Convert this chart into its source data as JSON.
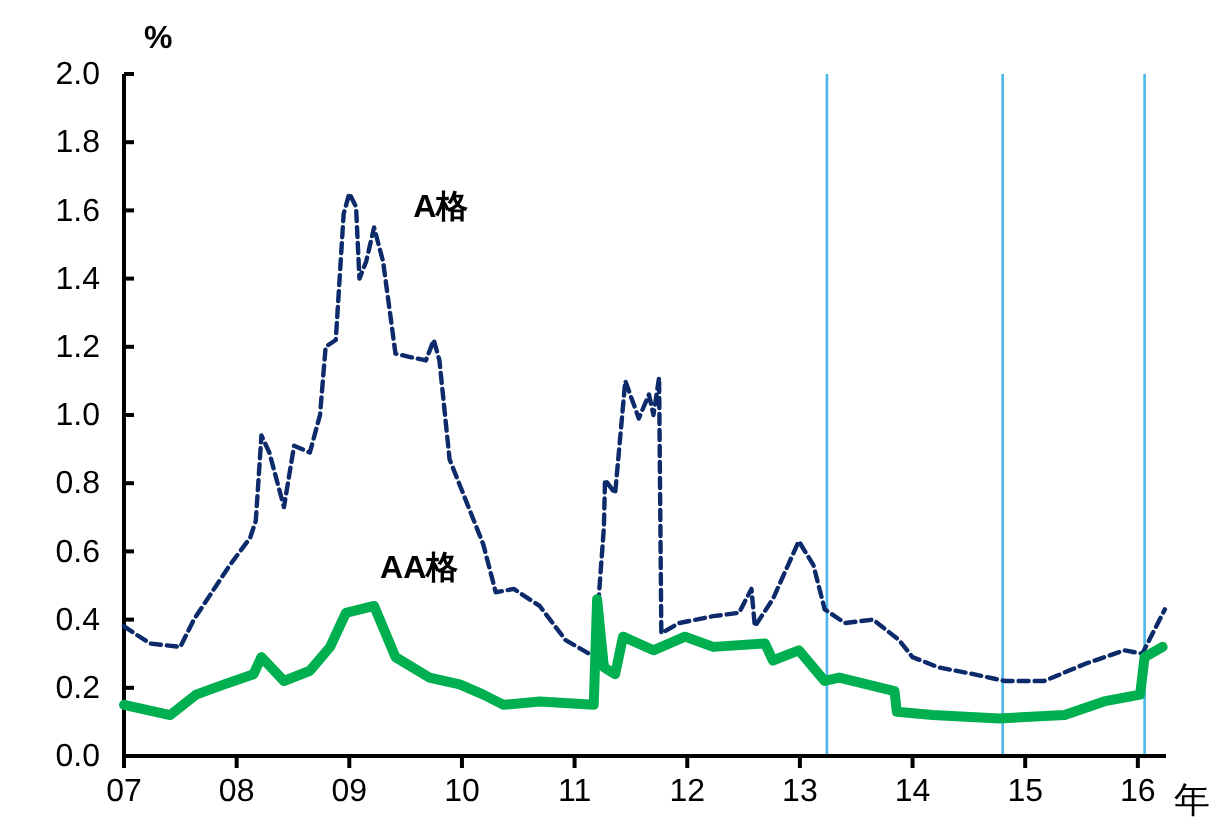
{
  "chart_data": {
    "type": "line",
    "xlabel": "年",
    "ylabel": "%",
    "xlim": [
      2007,
      2016.25
    ],
    "xticks": [
      {
        "value": 2007,
        "label": "07"
      },
      {
        "value": 2008,
        "label": "08"
      },
      {
        "value": 2009,
        "label": "09"
      },
      {
        "value": 2010,
        "label": "10"
      },
      {
        "value": 2011,
        "label": "11"
      },
      {
        "value": 2012,
        "label": "12"
      },
      {
        "value": 2013,
        "label": "13"
      },
      {
        "value": 2014,
        "label": "14"
      },
      {
        "value": 2015,
        "label": "15"
      },
      {
        "value": 2016,
        "label": "16"
      }
    ],
    "ylim": [
      0,
      2
    ],
    "yticks": [
      {
        "value": 0,
        "label": "0.0"
      },
      {
        "value": 0.2,
        "label": "0.2"
      },
      {
        "value": 0.4,
        "label": "0.4"
      },
      {
        "value": 0.6,
        "label": "0.6"
      },
      {
        "value": 0.8,
        "label": "0.8"
      },
      {
        "value": 1,
        "label": "1.0"
      },
      {
        "value": 1.2,
        "label": "1.2"
      },
      {
        "value": 1.4,
        "label": "1.4"
      },
      {
        "value": 1.6,
        "label": "1.6"
      },
      {
        "value": 1.8,
        "label": "1.8"
      },
      {
        "value": 2,
        "label": "2.0"
      }
    ],
    "grid": false,
    "legend": false,
    "marker": "none",
    "series": [
      {
        "name": "A格",
        "color": "#0d2a6b",
        "line_style": "dashed",
        "x": [
          2007.0,
          2007.23,
          2007.5,
          2007.62,
          2007.82,
          2007.94,
          2008.12,
          2008.17,
          2008.22,
          2008.29,
          2008.42,
          2008.51,
          2008.65,
          2008.74,
          2008.79,
          2008.88,
          2008.95,
          2009.0,
          2009.06,
          2009.09,
          2009.15,
          2009.22,
          2009.3,
          2009.41,
          2009.54,
          2009.68,
          2009.75,
          2009.8,
          2009.89,
          2010.01,
          2010.19,
          2010.3,
          2010.46,
          2010.69,
          2010.92,
          2011.13,
          2011.18,
          2011.26,
          2011.27,
          2011.36,
          2011.45,
          2011.57,
          2011.66,
          2011.7,
          2011.75,
          2011.77,
          2011.93,
          2012.23,
          2012.46,
          2012.57,
          2012.6,
          2012.76,
          2012.99,
          2013.12,
          2013.22,
          2013.4,
          2013.65,
          2013.88,
          2014.0,
          2014.23,
          2014.54,
          2014.82,
          2015.17,
          2015.53,
          2015.88,
          2016.04,
          2016.24
        ],
        "values": [
          0.38,
          0.33,
          0.32,
          0.4,
          0.5,
          0.56,
          0.64,
          0.69,
          0.94,
          0.89,
          0.73,
          0.91,
          0.89,
          1.0,
          1.2,
          1.22,
          1.59,
          1.65,
          1.61,
          1.4,
          1.45,
          1.55,
          1.45,
          1.18,
          1.17,
          1.16,
          1.22,
          1.16,
          0.87,
          0.77,
          0.62,
          0.48,
          0.49,
          0.44,
          0.34,
          0.3,
          0.31,
          0.67,
          0.81,
          0.77,
          1.1,
          0.99,
          1.06,
          1.0,
          1.11,
          0.36,
          0.39,
          0.41,
          0.42,
          0.49,
          0.38,
          0.46,
          0.63,
          0.56,
          0.43,
          0.39,
          0.4,
          0.34,
          0.29,
          0.26,
          0.24,
          0.22,
          0.22,
          0.27,
          0.31,
          0.3,
          0.43
        ]
      },
      {
        "name": "AA格",
        "color": "#00b050",
        "line_style": "solid",
        "x": [
          2007.0,
          2007.41,
          2007.64,
          2007.89,
          2008.15,
          2008.22,
          2008.42,
          2008.65,
          2008.83,
          2008.97,
          2009.22,
          2009.41,
          2009.71,
          2009.98,
          2010.19,
          2010.37,
          2010.69,
          2011.17,
          2011.2,
          2011.26,
          2011.36,
          2011.43,
          2011.7,
          2011.98,
          2012.23,
          2012.69,
          2012.76,
          2012.99,
          2013.22,
          2013.35,
          2013.84,
          2013.86,
          2014.18,
          2014.77,
          2015.35,
          2015.7,
          2016.02,
          2016.06,
          2016.22
        ],
        "values": [
          0.15,
          0.12,
          0.18,
          0.21,
          0.24,
          0.29,
          0.22,
          0.25,
          0.32,
          0.42,
          0.44,
          0.29,
          0.23,
          0.21,
          0.18,
          0.15,
          0.16,
          0.15,
          0.46,
          0.26,
          0.24,
          0.35,
          0.31,
          0.35,
          0.32,
          0.33,
          0.28,
          0.31,
          0.22,
          0.23,
          0.19,
          0.13,
          0.12,
          0.11,
          0.12,
          0.16,
          0.18,
          0.29,
          0.32
        ]
      }
    ],
    "ref_lines": [
      {
        "axis": "x",
        "value": 2013.24,
        "color": "#4db8e8"
      },
      {
        "axis": "x",
        "value": 2014.8,
        "color": "#4db8e8"
      },
      {
        "axis": "x",
        "value": 2016.06,
        "color": "#4db8e8"
      }
    ]
  }
}
